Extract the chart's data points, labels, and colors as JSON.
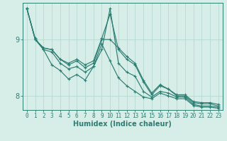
{
  "xlabel": "Humidex (Indice chaleur)",
  "bg_color": "#d7ede8",
  "line_color": "#2e7d72",
  "grid_color": "#b8d8d2",
  "axis_color": "#2e7d72",
  "xlim": [
    -0.5,
    23.5
  ],
  "ylim": [
    7.75,
    9.65
  ],
  "yticks": [
    8,
    9
  ],
  "series": [
    [
      9.55,
      9.0,
      8.82,
      8.78,
      8.58,
      8.48,
      8.52,
      8.42,
      8.52,
      8.82,
      9.55,
      8.58,
      8.42,
      8.35,
      8.08,
      7.98,
      8.08,
      8.05,
      7.98,
      7.98,
      7.85,
      7.82,
      7.82,
      7.8
    ],
    [
      9.55,
      9.0,
      8.85,
      8.82,
      8.65,
      8.55,
      8.62,
      8.5,
      8.58,
      9.0,
      9.0,
      8.85,
      8.7,
      8.58,
      8.28,
      8.05,
      8.2,
      8.12,
      8.02,
      8.02,
      7.9,
      7.88,
      7.88,
      7.85
    ],
    [
      9.55,
      9.02,
      8.82,
      8.55,
      8.45,
      8.3,
      8.38,
      8.28,
      8.52,
      8.92,
      8.62,
      8.32,
      8.18,
      8.08,
      7.98,
      7.95,
      8.05,
      8.0,
      7.95,
      7.95,
      7.83,
      7.8,
      7.8,
      7.78
    ],
    [
      9.55,
      9.0,
      8.85,
      8.82,
      8.65,
      8.58,
      8.65,
      8.55,
      8.62,
      9.02,
      9.45,
      8.82,
      8.65,
      8.55,
      8.25,
      8.02,
      8.18,
      8.12,
      8.0,
      8.0,
      7.88,
      7.86,
      7.86,
      7.82
    ]
  ],
  "marker": "+",
  "markersize": 3.5,
  "linewidth": 0.85
}
